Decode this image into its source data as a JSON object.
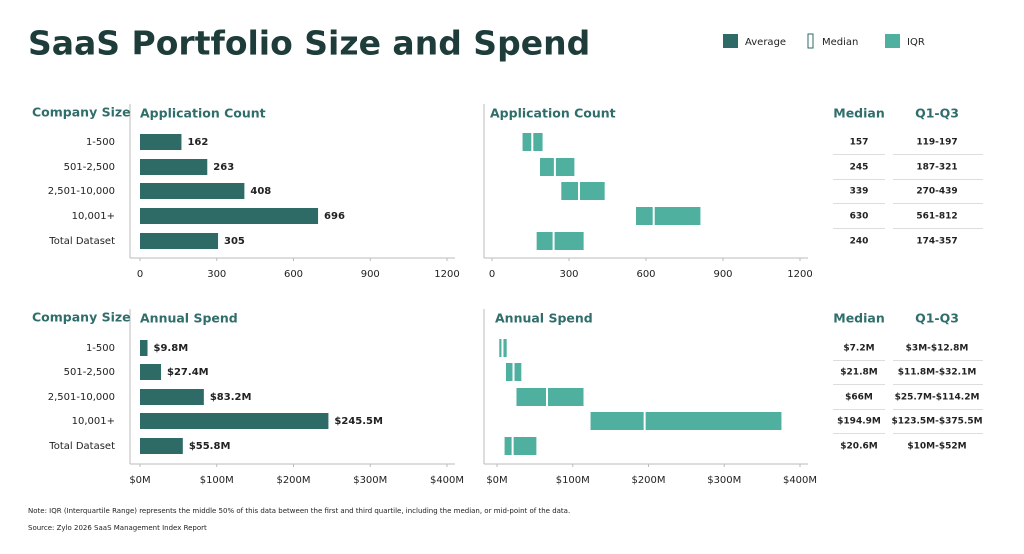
{
  "title": "SaaS Portfolio Size and Spend",
  "legend": [
    {
      "name": "Average",
      "color": "#2e6b66"
    },
    {
      "name": "Median",
      "color": "#ffffff"
    },
    {
      "name": "IQR",
      "color": "#4fb0a0"
    }
  ],
  "note": "Note: IQR (Interquartile Range) represents the middle 50% of this data between the first and third quartile, including the median, or mid-point of the data.",
  "source": "Source: Zylo 2026 SaaS Management Index Report",
  "chart_data": [
    {
      "type": "bar",
      "title": "Application Count",
      "category_header": "Company Size",
      "categories": [
        "1-500",
        "501-2,500",
        "2,501-10,000",
        "10,001+",
        "Total Dataset"
      ],
      "values": [
        162,
        263,
        408,
        696,
        305
      ],
      "color": "#2e6b66",
      "xlim": [
        0,
        1200
      ],
      "xticks": [
        0,
        300,
        600,
        900,
        1200
      ]
    },
    {
      "type": "range",
      "title": "Application Count",
      "q1": [
        119,
        187,
        270,
        561,
        174
      ],
      "median": [
        157,
        245,
        339,
        630,
        240
      ],
      "q3": [
        197,
        321,
        439,
        812,
        357
      ],
      "color": "#4fb0a0",
      "xlim": [
        0,
        1200
      ],
      "xticks": [
        0,
        300,
        600,
        900,
        1200
      ],
      "median_header": "Median",
      "range_header": "Q1-Q3",
      "range_labels": [
        "119-197",
        "187-321",
        "270-439",
        "561-812",
        "174-357"
      ]
    },
    {
      "type": "bar",
      "title": "Annual Spend",
      "category_header": "Company Size",
      "categories": [
        "1-500",
        "501-2,500",
        "2,501-10,000",
        "10,001+",
        "Total Dataset"
      ],
      "values": [
        9.8,
        27.4,
        83.2,
        245.5,
        55.8
      ],
      "value_labels": [
        "$9.8M",
        "$27.4M",
        "$83.2M",
        "$245.5M",
        "$55.8M"
      ],
      "color": "#2e6b66",
      "xlim": [
        0,
        400
      ],
      "xticks": [
        {
          "value": 0,
          "label": "$0M"
        },
        {
          "value": 100,
          "label": "$100M"
        },
        {
          "value": 200,
          "label": "$200M"
        },
        {
          "value": 300,
          "label": "$300M"
        },
        {
          "value": 400,
          "label": "$400M"
        }
      ]
    },
    {
      "type": "range",
      "title": "Annual Spend",
      "q1": [
        3,
        11.8,
        25.7,
        123.5,
        10
      ],
      "median": [
        7.2,
        21.8,
        66,
        194.9,
        20.6
      ],
      "q3": [
        12.8,
        32.1,
        114.2,
        375.5,
        52
      ],
      "median_labels": [
        "$7.2M",
        "$21.8M",
        "$66M",
        "$194.9M",
        "$20.6M"
      ],
      "color": "#4fb0a0",
      "xlim": [
        0,
        400
      ],
      "xticks": [
        {
          "value": 0,
          "label": "$0M"
        },
        {
          "value": 100,
          "label": "$100M"
        },
        {
          "value": 200,
          "label": "$200M"
        },
        {
          "value": 300,
          "label": "$300M"
        },
        {
          "value": 400,
          "label": "$400M"
        }
      ],
      "median_header": "Median",
      "range_header": "Q1-Q3",
      "range_labels": [
        "$3M-$12.8M",
        "$11.8M-$32.1M",
        "$25.7M-$114.2M",
        "$123.5M-$375.5M",
        "$10M-$52M"
      ]
    }
  ]
}
